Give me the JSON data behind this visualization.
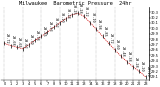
{
  "title": "Milwaukee  Barometric Pressure  24hr",
  "hours": [
    0,
    1,
    2,
    3,
    4,
    5,
    6,
    7,
    8,
    9,
    10,
    11,
    12,
    13,
    14,
    15,
    16,
    17,
    18,
    19,
    20,
    21,
    22,
    23
  ],
  "pressure": [
    29.72,
    29.68,
    29.65,
    29.62,
    29.7,
    29.78,
    29.85,
    29.93,
    30.02,
    30.1,
    30.18,
    30.25,
    30.28,
    30.22,
    30.1,
    29.98,
    29.85,
    29.72,
    29.6,
    29.48,
    29.38,
    29.28,
    29.2,
    29.1
  ],
  "line_color": "#cc0000",
  "marker_color": "#000000",
  "bg_color": "#ffffff",
  "grid_color": "#888888",
  "title_color": "#000000",
  "ylim": [
    29.05,
    30.4
  ],
  "ytick_vals": [
    29.1,
    29.2,
    29.3,
    29.4,
    29.5,
    29.6,
    29.7,
    29.8,
    29.9,
    30.0,
    30.1,
    30.2,
    30.3
  ],
  "grid_hours": [
    0,
    3,
    6,
    9,
    12,
    15,
    18,
    21
  ],
  "title_fontsize": 3.8,
  "tick_fontsize": 2.5,
  "label_fontsize": 2.5,
  "xtick_fontsize": 2.5
}
